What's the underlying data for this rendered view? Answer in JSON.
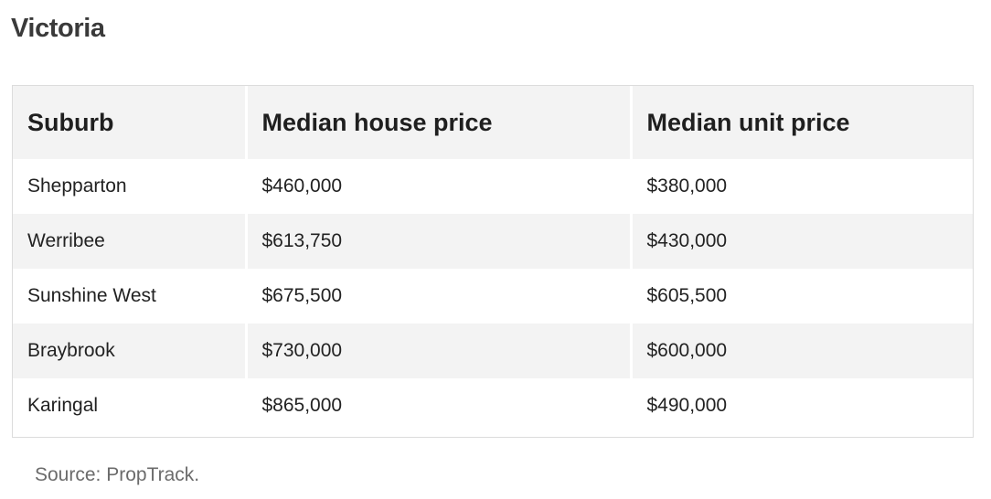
{
  "title": "Victoria",
  "table": {
    "headers": [
      "Suburb",
      "Median house price",
      "Median unit price"
    ],
    "rows": [
      [
        "Shepparton",
        "$460,000",
        "$380,000"
      ],
      [
        "Werribee",
        "$613,750",
        "$430,000"
      ],
      [
        "Sunshine West",
        "$675,500",
        "$605,500"
      ],
      [
        "Braybrook",
        "$730,000",
        "$600,000"
      ],
      [
        "Karingal",
        "$865,000",
        "$490,000"
      ]
    ]
  },
  "source": "Source: PropTrack."
}
